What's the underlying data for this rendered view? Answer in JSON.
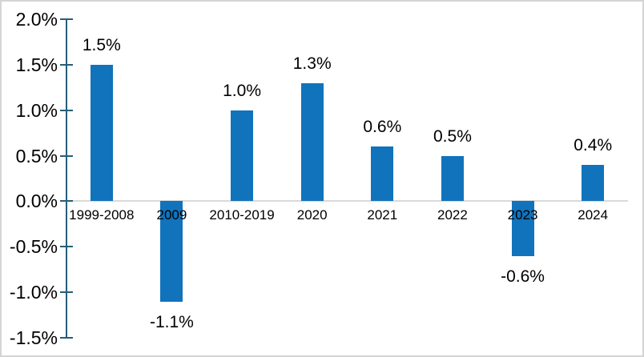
{
  "chart_data": {
    "type": "bar",
    "title": "",
    "xlabel": "",
    "ylabel": "",
    "categories": [
      "1999-2008",
      "2009",
      "2010-2019",
      "2020",
      "2021",
      "2022",
      "2023",
      "2024"
    ],
    "values": [
      1.5,
      -1.1,
      1.0,
      1.3,
      0.6,
      0.5,
      -0.6,
      0.4
    ],
    "data_labels": [
      "1.5%",
      "-1.1%",
      "1.0%",
      "1.3%",
      "0.6%",
      "0.5%",
      "-0.6%",
      "0.4%"
    ],
    "y_ticks": [
      {
        "label": "2.0%",
        "value": 2.0
      },
      {
        "label": "1.5%",
        "value": 1.5
      },
      {
        "label": "1.0%",
        "value": 1.0
      },
      {
        "label": "0.5%",
        "value": 0.5
      },
      {
        "label": "0.0%",
        "value": 0.0
      },
      {
        "label": "-0.5%",
        "value": -0.5
      },
      {
        "label": "-1.0%",
        "value": -1.0
      },
      {
        "label": "-1.5%",
        "value": -1.5
      }
    ],
    "ylim": [
      -1.5,
      2.0
    ],
    "grid": "zero-line-only",
    "legend_position": "none",
    "colors": {
      "bar": "#1073BC",
      "axis": "#265E79",
      "zero_line": "#D9D9D9",
      "text": "#000000",
      "canvas_border": "#D4D4D4",
      "background": "#FFFFFF"
    }
  }
}
